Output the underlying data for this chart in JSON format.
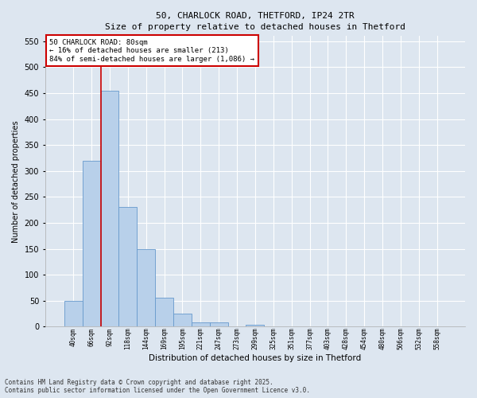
{
  "title_line1": "50, CHARLOCK ROAD, THETFORD, IP24 2TR",
  "title_line2": "Size of property relative to detached houses in Thetford",
  "xlabel": "Distribution of detached houses by size in Thetford",
  "ylabel": "Number of detached properties",
  "categories": [
    "40sqm",
    "66sqm",
    "92sqm",
    "118sqm",
    "144sqm",
    "169sqm",
    "195sqm",
    "221sqm",
    "247sqm",
    "273sqm",
    "299sqm",
    "325sqm",
    "351sqm",
    "377sqm",
    "403sqm",
    "428sqm",
    "454sqm",
    "480sqm",
    "506sqm",
    "532sqm",
    "558sqm"
  ],
  "bar_heights": [
    50,
    320,
    455,
    230,
    150,
    55,
    25,
    8,
    8,
    0,
    3,
    0,
    0,
    0,
    0,
    0,
    0,
    0,
    0,
    0,
    0
  ],
  "bar_color": "#b8d0ea",
  "bar_edge_color": "#6699cc",
  "fig_background_color": "#dde6f0",
  "ax_background_color": "#dde6f0",
  "grid_color": "#ffffff",
  "vline_color": "#cc0000",
  "vline_x": 1.5,
  "annotation_text": "50 CHARLOCK ROAD: 80sqm\n← 16% of detached houses are smaller (213)\n84% of semi-detached houses are larger (1,086) →",
  "annotation_box_color": "#cc0000",
  "ylim": [
    0,
    560
  ],
  "yticks": [
    0,
    50,
    100,
    150,
    200,
    250,
    300,
    350,
    400,
    450,
    500,
    550
  ],
  "footer_line1": "Contains HM Land Registry data © Crown copyright and database right 2025.",
  "footer_line2": "Contains public sector information licensed under the Open Government Licence v3.0."
}
